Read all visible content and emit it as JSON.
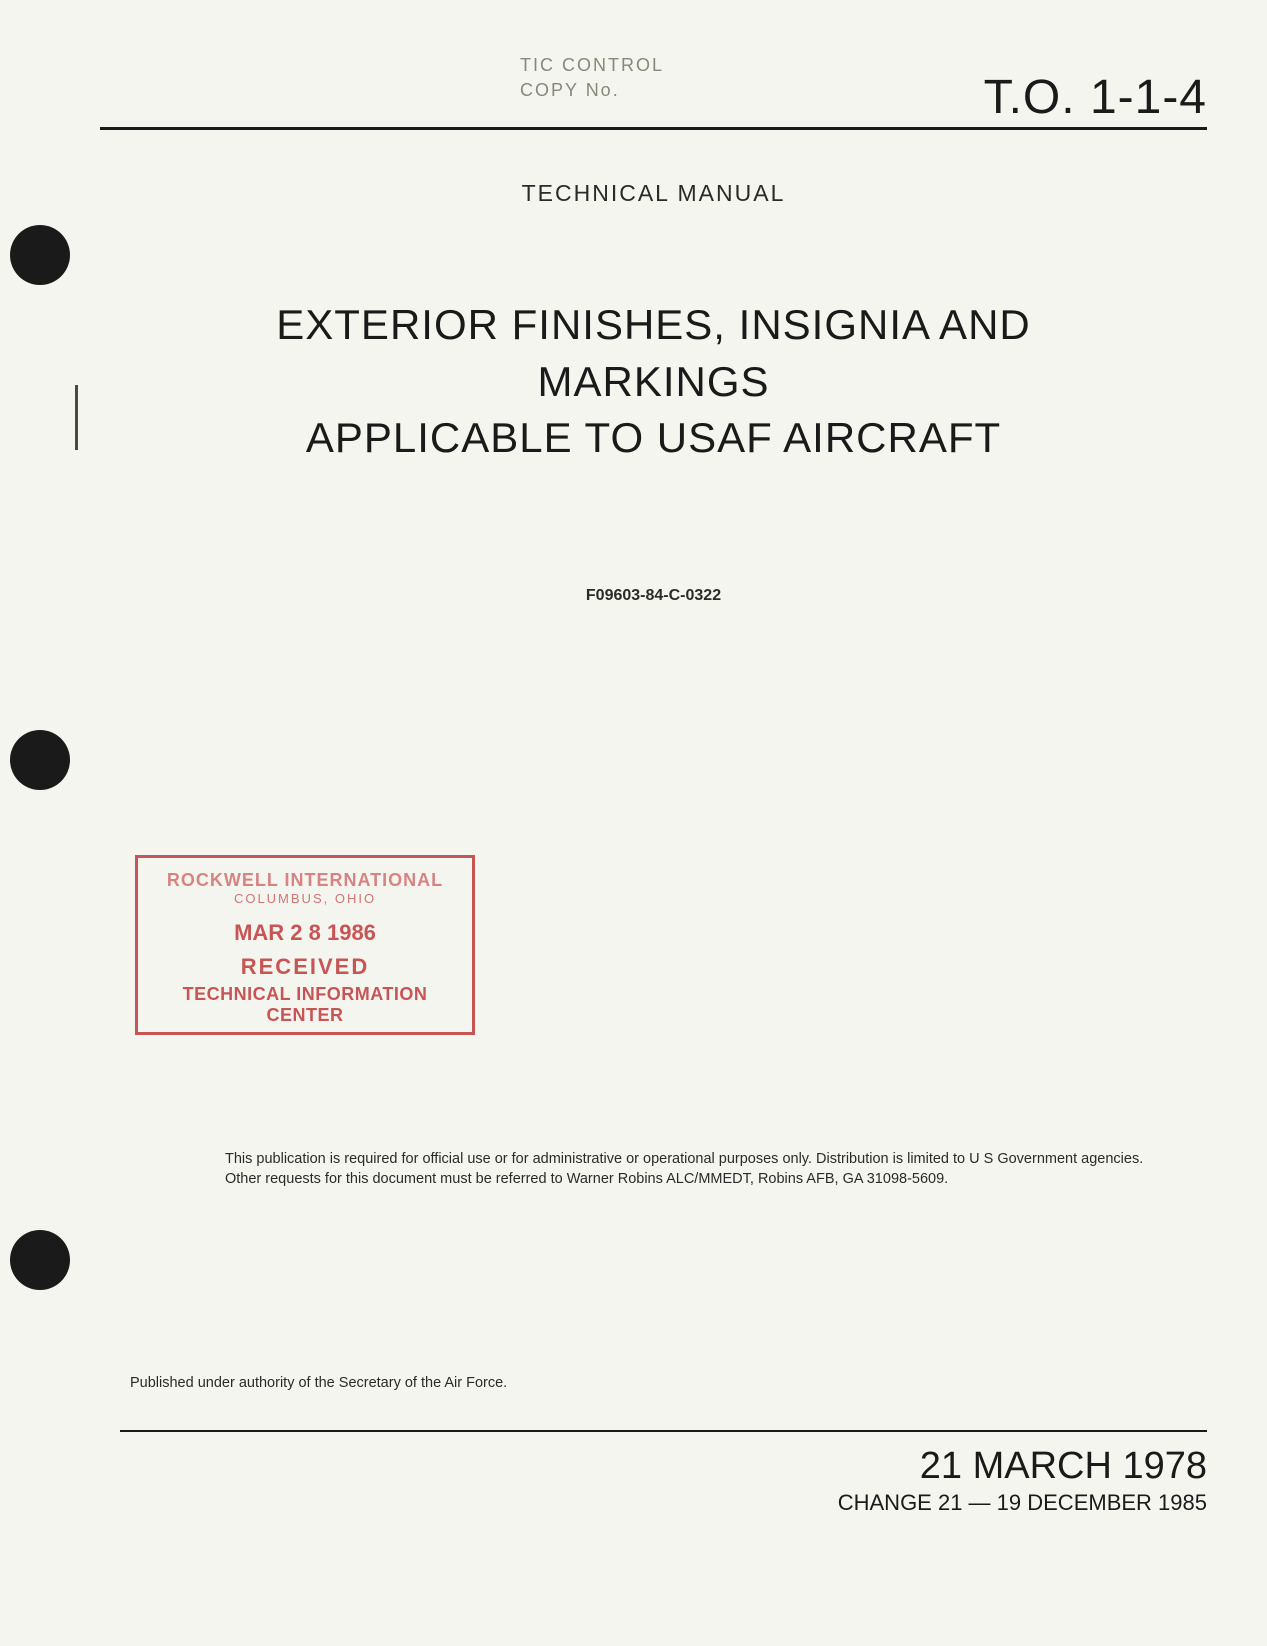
{
  "header": {
    "tic_control": "TIC CONTROL",
    "copy_no": "COPY No.",
    "doc_number": "T.O. 1-1-4"
  },
  "technical_manual_label": "TECHNICAL MANUAL",
  "title": {
    "line1": "EXTERIOR FINISHES, INSIGNIA AND",
    "line2": "MARKINGS",
    "line3": "APPLICABLE TO USAF AIRCRAFT"
  },
  "contract_number": "F09603-84-C-0322",
  "stamp": {
    "company": "ROCKWELL INTERNATIONAL",
    "location": "COLUMBUS, OHIO",
    "date": "MAR 2 8 1986",
    "received": "RECEIVED",
    "center": "TECHNICAL INFORMATION CENTER"
  },
  "distribution": "This publication is required for official use or for administrative or operational purposes only. Distribution is limited to U S Government agencies. Other requests for this document must be referred to Warner Robins ALC/MMEDT, Robins AFB, GA 31098-5609.",
  "authority": "Published under authority of the Secretary of the Air Force.",
  "dates": {
    "main": "21 MARCH 1978",
    "change": "CHANGE 21 — 19 DECEMBER 1985"
  },
  "colors": {
    "background": "#f5f5f0",
    "text_primary": "#1a1a1a",
    "text_secondary": "#2a2a2a",
    "text_faded": "#888878",
    "stamp": "#c85555",
    "punch_hole": "#1a1a1a"
  }
}
